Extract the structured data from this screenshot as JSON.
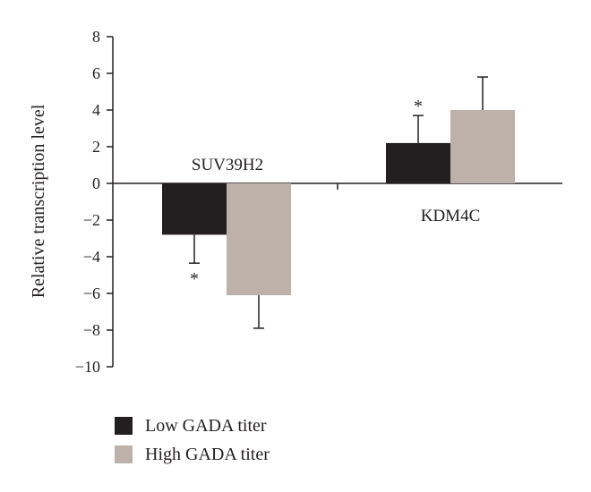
{
  "chart_data": {
    "type": "bar",
    "categories": [
      "SUV39H2",
      "KDM4C"
    ],
    "series": [
      {
        "name": "Low GADA titer",
        "color": "#231f20",
        "values": [
          -2.8,
          2.2
        ],
        "errors": [
          1.55,
          1.5
        ],
        "significance": [
          "*",
          "*"
        ]
      },
      {
        "name": "High GADA titer",
        "color": "#bdb1aa",
        "values": [
          -6.1,
          4.0
        ],
        "errors": [
          1.8,
          1.8
        ],
        "significance": [
          "",
          ""
        ]
      }
    ],
    "ylabel": "Relative transcription level",
    "ylim": [
      -10,
      8
    ],
    "yticks": [
      "8",
      "6",
      "4",
      "2",
      "0",
      "−2",
      "−4",
      "−6",
      "−8",
      "−10"
    ],
    "legend_position": "bottom-left"
  }
}
